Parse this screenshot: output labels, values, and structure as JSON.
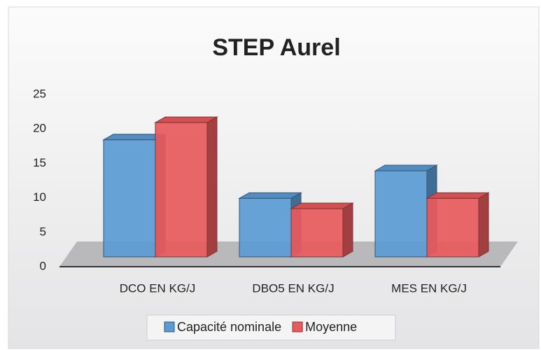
{
  "chart_data": {
    "type": "bar3d",
    "title": "STEP Aurel",
    "categories": [
      "DCO EN KG/J",
      "DBO5 EN KG/J",
      "MES EN KG/J"
    ],
    "series": [
      {
        "name": "Capacité nominale",
        "color": "#5b9bd5",
        "values": [
          17,
          8.5,
          12.5
        ]
      },
      {
        "name": "Moyenne",
        "color": "#e85a5c",
        "values": [
          19.5,
          7,
          8.5
        ]
      }
    ],
    "ylim": [
      0,
      25
    ],
    "yticks": [
      0,
      5,
      10,
      15,
      20,
      25
    ],
    "legend": "bottom"
  }
}
